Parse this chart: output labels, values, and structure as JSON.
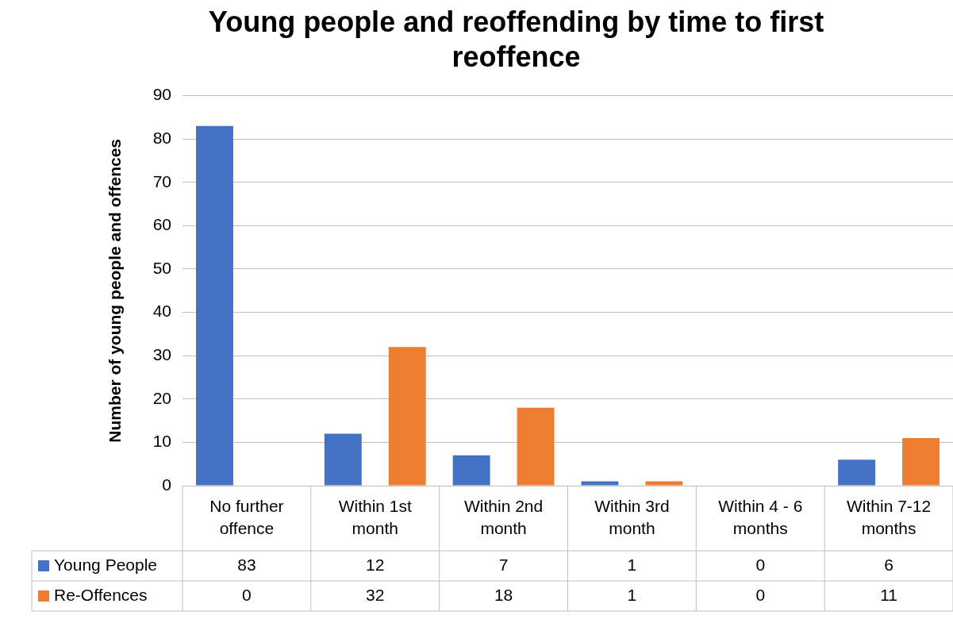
{
  "chart_data": {
    "type": "bar",
    "title": "Young people and reoffending by time to first reoffence",
    "ylabel": "Number of young people and offences",
    "categories": [
      "No further offence",
      "Within 1st month",
      "Within 2nd month",
      "Within 3rd month",
      "Within 4 - 6 months",
      "Within 7-12 months"
    ],
    "series": [
      {
        "name": "Young People",
        "color": "#4472c4",
        "values": [
          83,
          12,
          7,
          1,
          0,
          6
        ]
      },
      {
        "name": "Re-Offences",
        "color": "#ed7d31",
        "values": [
          0,
          32,
          18,
          1,
          0,
          11
        ]
      }
    ],
    "ylim": [
      0,
      90
    ],
    "yticks": [
      0,
      10,
      20,
      30,
      40,
      50,
      60,
      70,
      80,
      90
    ],
    "grid": "y",
    "legend": "bottom left",
    "data_labels": true
  }
}
